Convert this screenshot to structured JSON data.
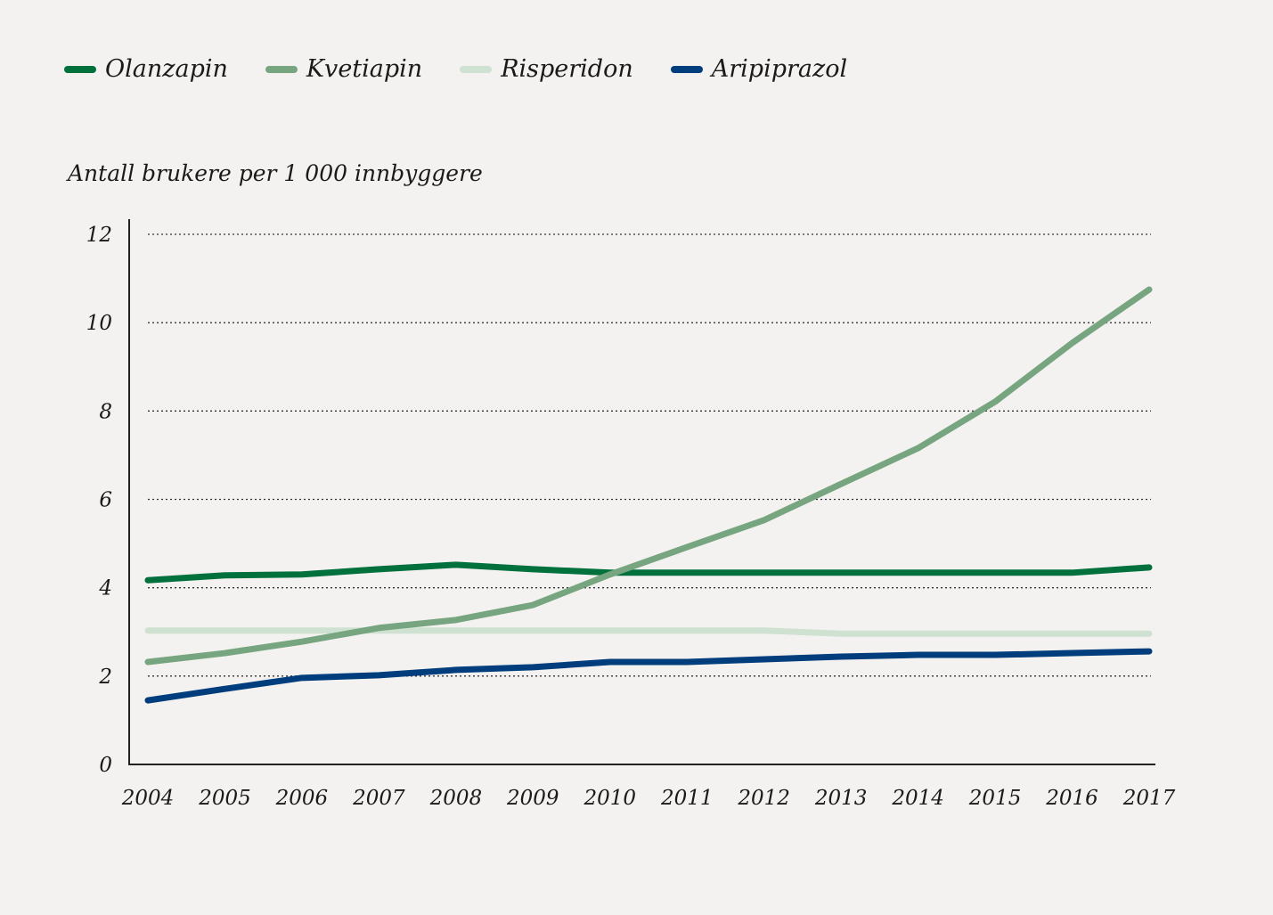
{
  "chart_data": {
    "type": "line",
    "title": "",
    "xlabel": "",
    "ylabel": "Antall brukere per 1 000 innbyggere",
    "ylim": [
      0,
      12
    ],
    "yticks": [
      0,
      2,
      4,
      6,
      8,
      10,
      12
    ],
    "grid": "horizontal dotted",
    "legend": "top-left",
    "x": [
      "2004",
      "2005",
      "2006",
      "2007",
      "2008",
      "2009",
      "2010",
      "2011",
      "2012",
      "2013",
      "2014",
      "2015",
      "2016",
      "2017"
    ],
    "series": [
      {
        "name": "Olanzapin",
        "color": "#00703c",
        "values": [
          4.17,
          4.28,
          4.3,
          4.42,
          4.52,
          4.42,
          4.34,
          4.34,
          4.34,
          4.34,
          4.34,
          4.34,
          4.34,
          4.46
        ]
      },
      {
        "name": "Kvetiapin",
        "color": "#76a57f",
        "values": [
          2.32,
          2.52,
          2.78,
          3.09,
          3.27,
          3.61,
          4.3,
          4.92,
          5.53,
          6.35,
          7.16,
          8.21,
          9.54,
          10.75
        ]
      },
      {
        "name": "Risperidon",
        "color": "#cfe1d1",
        "values": [
          3.03,
          3.03,
          3.03,
          3.03,
          3.03,
          3.03,
          3.03,
          3.03,
          3.03,
          2.96,
          2.96,
          2.96,
          2.96,
          2.96
        ]
      },
      {
        "name": "Aripiprazol",
        "color": "#003d7c",
        "values": [
          1.45,
          1.71,
          1.96,
          2.02,
          2.14,
          2.2,
          2.32,
          2.32,
          2.38,
          2.44,
          2.48,
          2.48,
          2.52,
          2.56
        ]
      }
    ]
  }
}
